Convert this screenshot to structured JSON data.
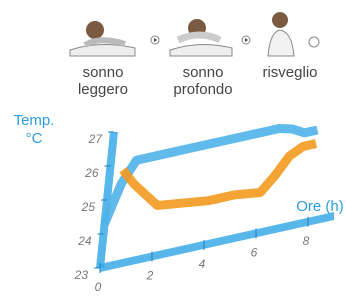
{
  "chart_data": {
    "type": "line",
    "phases": [
      "sonno leggero",
      "sonno profondo",
      "risveglio"
    ],
    "y_label": "Temp. °C",
    "x_label": "Ore (h)",
    "x": [
      0,
      0.5,
      1,
      2,
      3,
      4,
      5,
      6,
      6.5,
      7,
      7.5,
      8
    ],
    "series": [
      {
        "color": "#4fb3ea",
        "values": [
          24.3,
          25.4,
          26.0,
          26.0,
          26.0,
          26.0,
          26.0,
          26.0,
          26.0,
          25.9,
          25.7,
          25.7
        ]
      },
      {
        "color": "#f39a1e",
        "values": [
          null,
          25.8,
          25.3,
          24.5,
          24.4,
          24.3,
          24.3,
          24.2,
          24.6,
          25.1,
          25.3,
          25.3
        ]
      }
    ],
    "xlim": [
      0,
      9
    ],
    "ylim": [
      23,
      27
    ],
    "xticks": [
      0,
      2,
      4,
      6,
      8
    ],
    "yticks": [
      23,
      24,
      25,
      26,
      27
    ],
    "axis_color": "#3aa9e6"
  }
}
